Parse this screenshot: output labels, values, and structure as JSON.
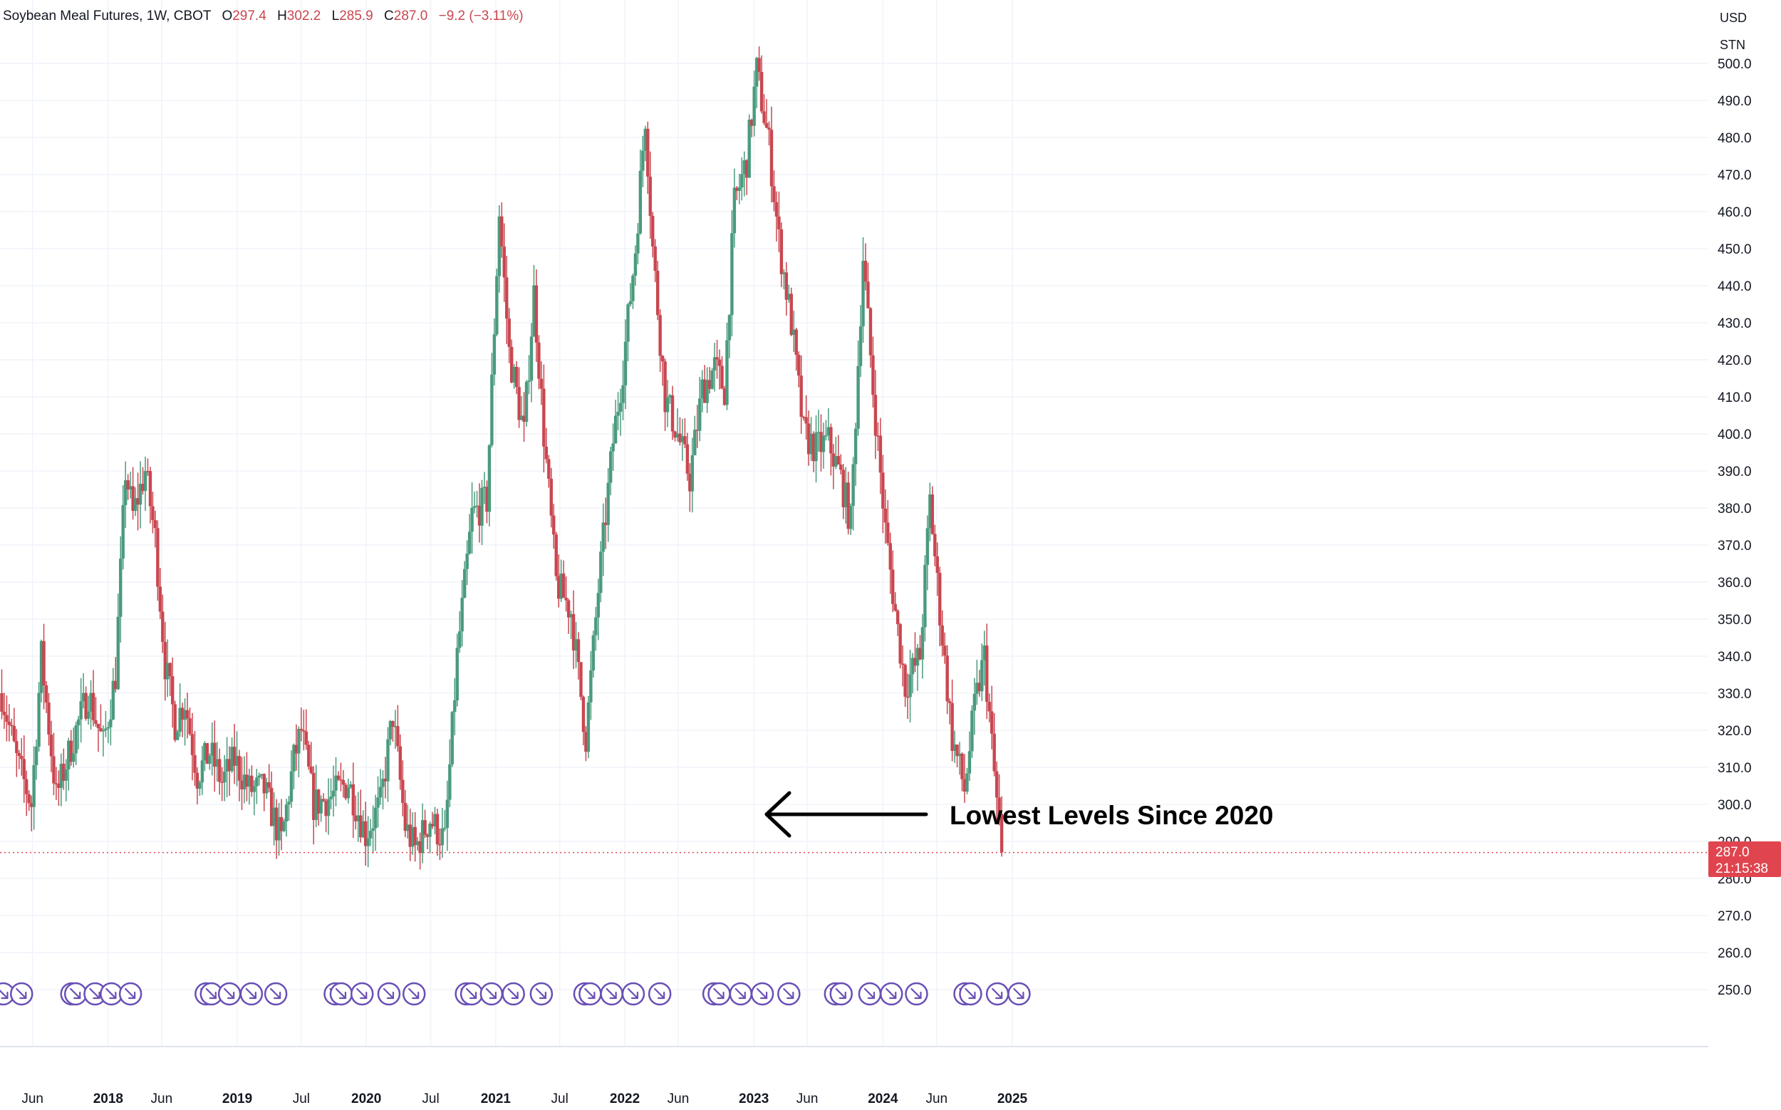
{
  "legend": {
    "symbol": "Soybean Meal Futures, 1W, CBOT",
    "open_label": "O",
    "open": "297.4",
    "high_label": "H",
    "high": "302.2",
    "low_label": "L",
    "low": "285.9",
    "close_label": "C",
    "close": "287.0",
    "change": "−9.2 (−3.11%)"
  },
  "currency_buttons": [
    "USD",
    "STN"
  ],
  "price_tag": {
    "price": "287.0",
    "countdown": "21:15:38"
  },
  "annotation": "Lowest Levels Since 2020",
  "colors": {
    "up": "#4a9a7d",
    "down": "#c9464f",
    "event": "#6a4fb5",
    "price_tag": "#e0454f"
  },
  "chart_data": {
    "type": "candlestick",
    "x_range": [
      "2017-03",
      "2025-02"
    ],
    "ylim": [
      245,
      508
    ],
    "y_ticks": [
      "250.0",
      "260.0",
      "270.0",
      "280.0",
      "290.0",
      "300.0",
      "310.0",
      "320.0",
      "330.0",
      "340.0",
      "350.0",
      "360.0",
      "370.0",
      "380.0",
      "390.0",
      "400.0",
      "410.0",
      "420.0",
      "430.0",
      "440.0",
      "450.0",
      "460.0",
      "470.0",
      "480.0",
      "490.0",
      "500.0"
    ],
    "x_ticks": [
      {
        "label": "Jun",
        "date": "2017-06-01"
      },
      {
        "label": "2018",
        "date": "2018-01-01",
        "year": true
      },
      {
        "label": "Jun",
        "date": "2018-06-01"
      },
      {
        "label": "2019",
        "date": "2019-01-01",
        "year": true
      },
      {
        "label": "Jul",
        "date": "2019-07-01"
      },
      {
        "label": "2020",
        "date": "2020-01-01",
        "year": true
      },
      {
        "label": "Jul",
        "date": "2020-07-01"
      },
      {
        "label": "2021",
        "date": "2021-01-01",
        "year": true
      },
      {
        "label": "Jul",
        "date": "2021-07-01"
      },
      {
        "label": "2022",
        "date": "2022-01-01",
        "year": true
      },
      {
        "label": "Jun",
        "date": "2022-06-01"
      },
      {
        "label": "2023",
        "date": "2023-01-01",
        "year": true
      },
      {
        "label": "Jun",
        "date": "2023-06-01"
      },
      {
        "label": "2024",
        "date": "2024-01-01",
        "year": true
      },
      {
        "label": "Jun",
        "date": "2024-06-01"
      },
      {
        "label": "2025",
        "date": "2025-01-01",
        "year": true
      }
    ],
    "current_price": 287.0,
    "close_path": [
      [
        "2017-03-06",
        330
      ],
      [
        "2017-04-17",
        312
      ],
      [
        "2017-05-29",
        300
      ],
      [
        "2017-06-26",
        340
      ],
      [
        "2017-08-07",
        302
      ],
      [
        "2017-09-25",
        318
      ],
      [
        "2017-11-06",
        330
      ],
      [
        "2017-12-18",
        316
      ],
      [
        "2018-01-22",
        335
      ],
      [
        "2018-02-19",
        390
      ],
      [
        "2018-03-12",
        378
      ],
      [
        "2018-04-16",
        390
      ],
      [
        "2018-05-14",
        372
      ],
      [
        "2018-06-11",
        338
      ],
      [
        "2018-07-09",
        322
      ],
      [
        "2018-08-06",
        328
      ],
      [
        "2018-09-10",
        308
      ],
      [
        "2018-10-15",
        314
      ],
      [
        "2018-11-19",
        306
      ],
      [
        "2018-12-24",
        312
      ],
      [
        "2019-02-04",
        304
      ],
      [
        "2019-03-18",
        304
      ],
      [
        "2019-05-06",
        290
      ],
      [
        "2019-06-10",
        312
      ],
      [
        "2019-07-01",
        320
      ],
      [
        "2019-08-05",
        300
      ],
      [
        "2019-09-23",
        302
      ],
      [
        "2019-11-11",
        306
      ],
      [
        "2019-12-30",
        292
      ],
      [
        "2020-02-10",
        300
      ],
      [
        "2020-03-16",
        324
      ],
      [
        "2020-04-20",
        294
      ],
      [
        "2020-05-18",
        288
      ],
      [
        "2020-06-29",
        296
      ],
      [
        "2020-08-10",
        290
      ],
      [
        "2020-09-14",
        340
      ],
      [
        "2020-10-26",
        378
      ],
      [
        "2020-12-07",
        382
      ],
      [
        "2021-01-11",
        460
      ],
      [
        "2021-02-08",
        422
      ],
      [
        "2021-03-22",
        400
      ],
      [
        "2021-04-19",
        438
      ],
      [
        "2021-05-17",
        400
      ],
      [
        "2021-06-21",
        360
      ],
      [
        "2021-08-02",
        352
      ],
      [
        "2021-09-13",
        318
      ],
      [
        "2021-10-18",
        358
      ],
      [
        "2021-11-29",
        398
      ],
      [
        "2021-12-27",
        418
      ],
      [
        "2022-01-31",
        450
      ],
      [
        "2022-02-28",
        486
      ],
      [
        "2022-03-21",
        450
      ],
      [
        "2022-04-25",
        410
      ],
      [
        "2022-05-30",
        400
      ],
      [
        "2022-07-04",
        388
      ],
      [
        "2022-08-08",
        412
      ],
      [
        "2022-09-12",
        418
      ],
      [
        "2022-10-10",
        412
      ],
      [
        "2022-11-07",
        462
      ],
      [
        "2022-12-12",
        474
      ],
      [
        "2023-01-09",
        498
      ],
      [
        "2023-02-13",
        478
      ],
      [
        "2023-03-13",
        452
      ],
      [
        "2023-04-17",
        430
      ],
      [
        "2023-05-22",
        400
      ],
      [
        "2023-06-26",
        396
      ],
      [
        "2023-07-31",
        398
      ],
      [
        "2023-09-04",
        388
      ],
      [
        "2023-10-02",
        376
      ],
      [
        "2023-11-06",
        448
      ],
      [
        "2023-12-04",
        412
      ],
      [
        "2024-01-08",
        374
      ],
      [
        "2024-02-05",
        352
      ],
      [
        "2024-03-04",
        332
      ],
      [
        "2024-04-15",
        340
      ],
      [
        "2024-05-13",
        382
      ],
      [
        "2024-06-10",
        352
      ],
      [
        "2024-07-15",
        318
      ],
      [
        "2024-08-19",
        304
      ],
      [
        "2024-09-16",
        326
      ],
      [
        "2024-10-14",
        340
      ],
      [
        "2024-11-11",
        308
      ],
      [
        "2024-12-02",
        287
      ]
    ],
    "event_dates": [
      "2017-03-10",
      "2017-05-01",
      "2017-09-20",
      "2017-10-01",
      "2017-11-25",
      "2018-01-10",
      "2018-03-05",
      "2018-10-05",
      "2018-10-20",
      "2018-12-10",
      "2019-02-10",
      "2019-04-20",
      "2019-10-05",
      "2019-10-22",
      "2019-12-20",
      "2020-03-05",
      "2020-05-15",
      "2020-10-10",
      "2020-10-25",
      "2020-12-20",
      "2021-02-20",
      "2021-05-10",
      "2021-09-10",
      "2021-09-25",
      "2021-11-25",
      "2022-01-25",
      "2022-04-10",
      "2022-09-10",
      "2022-09-25",
      "2022-11-25",
      "2023-01-25",
      "2023-04-10",
      "2023-08-20",
      "2023-09-05",
      "2023-11-25",
      "2024-01-25",
      "2024-04-05",
      "2024-08-20",
      "2024-09-05",
      "2024-11-20",
      "2025-01-20"
    ]
  }
}
